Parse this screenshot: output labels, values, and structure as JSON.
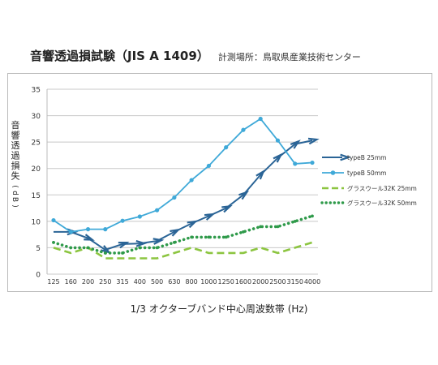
{
  "title": "音響透過損試験（JIS A 1409）",
  "subtitle": "計測場所：鳥取県産業技術センター",
  "chart_data": {
    "type": "line",
    "xlabel": "1/3 オクターブバンド中心周波数帯 (Hz)",
    "ylabel": "音響透過損失(dB)",
    "ylim": [
      0,
      35
    ],
    "yticks": [
      0,
      5,
      10,
      15,
      20,
      25,
      30,
      35
    ],
    "categories": [
      "125",
      "160",
      "200",
      "250",
      "315",
      "400",
      "500",
      "630",
      "800",
      "1000",
      "1250",
      "1600",
      "2000",
      "2500",
      "3150",
      "4000"
    ],
    "grid": true,
    "legend_position": "right",
    "series": [
      {
        "name": "typeB 25mm",
        "color": "#2a6496",
        "style": "arrow",
        "values": [
          8,
          8,
          6.8,
          4.6,
          5.7,
          5.8,
          6.3,
          8,
          9.6,
          11,
          12.5,
          15,
          18.8,
          22,
          24.6,
          25.3
        ]
      },
      {
        "name": "typeB 50mm",
        "color": "#3fa9d8",
        "style": "dot",
        "values": [
          10.2,
          8,
          8.5,
          8.5,
          10.1,
          10.9,
          12.1,
          14.5,
          17.8,
          20.5,
          24,
          27.3,
          29.4,
          25.3,
          20.9,
          21.1
        ]
      },
      {
        "name": "グラスウール32K 25mm",
        "color": "#8cc540",
        "style": "dash",
        "values": [
          5,
          4,
          5,
          3,
          3,
          3,
          3,
          4,
          5,
          4,
          4,
          4,
          5,
          4,
          5,
          6
        ]
      },
      {
        "name": "グラスウール32K 50mm",
        "color": "#2f9a4a",
        "style": "dotted",
        "values": [
          6,
          5,
          5,
          4,
          4,
          5,
          5,
          6,
          7,
          7,
          7,
          8,
          9,
          9,
          10,
          11
        ]
      }
    ]
  }
}
